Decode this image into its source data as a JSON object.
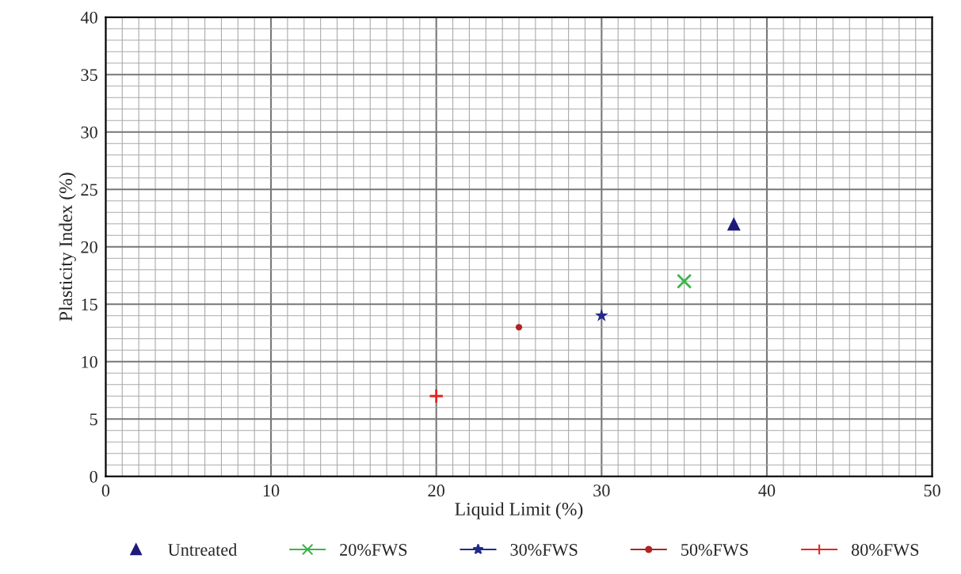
{
  "chart_data": {
    "type": "scatter",
    "xlabel": "Liquid Limit (%)",
    "ylabel": "Plasticity Index (%)",
    "xlim": [
      0,
      50
    ],
    "ylim": [
      0,
      40
    ],
    "xticks": [
      0,
      10,
      20,
      30,
      40,
      50
    ],
    "yticks": [
      0,
      5,
      10,
      15,
      20,
      25,
      30,
      35,
      40
    ],
    "grid": true,
    "legend": "bottom",
    "series": [
      {
        "name": "Untreated",
        "color": "#1f1a7a",
        "marker": "triangle",
        "x": [
          38
        ],
        "values": [
          22
        ]
      },
      {
        "name": "20%FWS",
        "color": "#3cb44b",
        "marker": "cross",
        "x": [
          35
        ],
        "values": [
          17
        ]
      },
      {
        "name": "30%FWS",
        "color": "#232a8a",
        "marker": "star",
        "x": [
          30
        ],
        "values": [
          14
        ]
      },
      {
        "name": "50%FWS",
        "color": "#b22222",
        "marker": "circle",
        "x": [
          25
        ],
        "values": [
          13
        ]
      },
      {
        "name": "80%FWS",
        "color": "#e8231f",
        "marker": "plus",
        "x": [
          20
        ],
        "values": [
          7
        ]
      }
    ]
  }
}
